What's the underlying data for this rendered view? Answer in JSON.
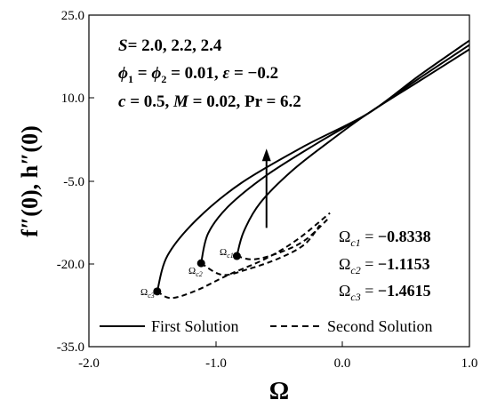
{
  "chart_data": {
    "type": "line",
    "xlabel": "Ω",
    "ylabel": "f″(0), h″(0)",
    "xlim": [
      -2.0,
      1.0
    ],
    "ylim": [
      -35.0,
      25.0
    ],
    "x_ticks": [
      "-2.0",
      "-1.0",
      "0.0",
      "1.0"
    ],
    "y_ticks": [
      "25.0",
      "10.0",
      "-5.0",
      "-20.0",
      "-35.0"
    ],
    "grid": false,
    "legend": {
      "placement": "bottom",
      "entries": [
        "First Solution",
        "Second Solution"
      ]
    },
    "annotations": {
      "line1": {
        "var": "S",
        "rhs": "= 2.0, 2.2, 2.4"
      },
      "line2": {
        "var1": "ϕ",
        "sub1": "1",
        "eq": " = ",
        "var2": "ϕ",
        "sub2": "2",
        "rest": " = 0.01, ",
        "var3": "ε",
        "rest2": " = −0.2"
      },
      "line3": {
        "var1": "c",
        "rest1": " = 0.5, ",
        "var2": "M",
        "rest2": " = 0.02, Pr = 6.2"
      }
    },
    "critical_values": [
      {
        "label": "Ω",
        "sub": "c1",
        "value": "−0.8338",
        "x": -0.8338,
        "y": -18.6
      },
      {
        "label": "Ω",
        "sub": "c2",
        "value": "−1.1153",
        "x": -1.1153,
        "y": -19.9
      },
      {
        "label": "Ω",
        "sub": "c3",
        "value": "−1.4615",
        "x": -1.4615,
        "y": -25.0
      }
    ],
    "series": [
      {
        "name": "First Solution",
        "style": "solid",
        "points": [
          [
            -0.8338,
            -18.6
          ],
          [
            -0.78,
            -14.2
          ],
          [
            -0.65,
            -9.0
          ],
          [
            -0.4,
            -3.2
          ],
          [
            -0.1,
            2.2
          ],
          [
            0.2,
            7.2
          ],
          [
            0.6,
            13.0
          ],
          [
            1.0,
            18.8
          ]
        ]
      },
      {
        "name": "First Solution",
        "style": "solid",
        "points": [
          [
            -1.1153,
            -19.9
          ],
          [
            -1.06,
            -14.5
          ],
          [
            -0.9,
            -9.6
          ],
          [
            -0.6,
            -4.0
          ],
          [
            -0.2,
            1.8
          ],
          [
            0.2,
            7.2
          ],
          [
            0.6,
            13.5
          ],
          [
            1.0,
            19.6
          ]
        ]
      },
      {
        "name": "First Solution",
        "style": "solid",
        "points": [
          [
            -1.4615,
            -25.0
          ],
          [
            -1.38,
            -18.5
          ],
          [
            -1.15,
            -12.0
          ],
          [
            -0.8,
            -5.4
          ],
          [
            -0.3,
            1.3
          ],
          [
            0.2,
            7.2
          ],
          [
            0.6,
            14.0
          ],
          [
            1.0,
            20.4
          ]
        ]
      },
      {
        "name": "Second Solution",
        "style": "dashed",
        "points": [
          [
            -0.8338,
            -18.6
          ],
          [
            -0.7,
            -19.2
          ],
          [
            -0.5,
            -18.0
          ],
          [
            -0.3,
            -15.8
          ],
          [
            -0.12,
            -12.0
          ]
        ]
      },
      {
        "name": "Second Solution",
        "style": "dashed",
        "points": [
          [
            -1.1153,
            -19.9
          ],
          [
            -0.95,
            -22.0
          ],
          [
            -0.75,
            -21.0
          ],
          [
            -0.5,
            -19.0
          ],
          [
            -0.3,
            -16.5
          ],
          [
            -0.18,
            -13.0
          ]
        ]
      },
      {
        "name": "Second Solution",
        "style": "dashed",
        "points": [
          [
            -1.4615,
            -25.0
          ],
          [
            -1.35,
            -26.2
          ],
          [
            -1.15,
            -24.8
          ],
          [
            -0.9,
            -22.0
          ],
          [
            -0.6,
            -19.0
          ],
          [
            -0.35,
            -15.5
          ],
          [
            -0.1,
            -10.8
          ]
        ]
      }
    ],
    "arrow": {
      "from": [
        -0.6,
        -13.5
      ],
      "to": [
        -0.6,
        0.5
      ]
    }
  }
}
